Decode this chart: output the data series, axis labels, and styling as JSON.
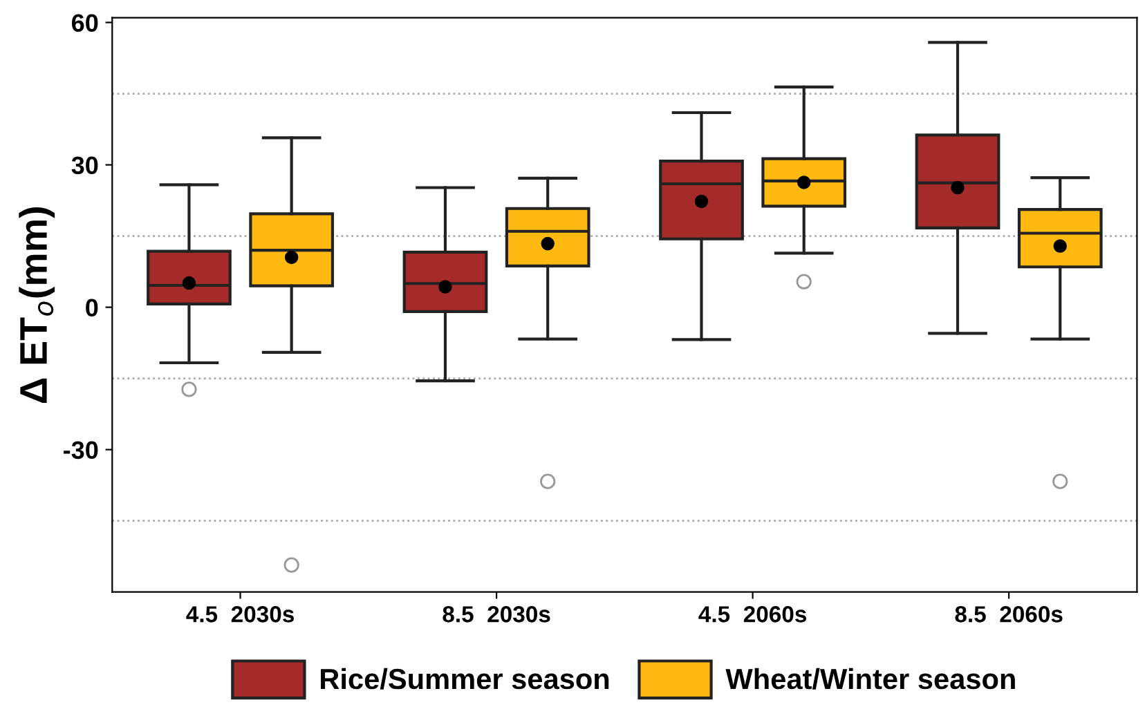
{
  "chart_data": {
    "type": "box",
    "ylabel": "Δ ET$_{o}$(mm)",
    "categories": [
      "4.5  2030s",
      "8.5  2030s",
      "4.5  2060s",
      "8.5  2060s"
    ],
    "ylim": [
      -60,
      61
    ],
    "yticks": [
      60,
      30,
      0,
      -30
    ],
    "legend": "bottom",
    "series": [
      {
        "name": "Rice/Summer season",
        "color": "#a52a2a",
        "boxes": [
          {
            "low": -11.7,
            "q1": 0.7,
            "median": 4.6,
            "q3": 11.8,
            "high": 25.8,
            "mean": 5.1,
            "outliers": [
              -17.3
            ]
          },
          {
            "low": -15.5,
            "q1": -0.9,
            "median": 5.0,
            "q3": 11.6,
            "high": 25.2,
            "mean": 4.3
          },
          {
            "low": -6.8,
            "q1": 14.4,
            "median": 26.0,
            "q3": 30.8,
            "high": 41.0,
            "mean": 22.3
          },
          {
            "low": -5.5,
            "q1": 16.7,
            "median": 26.2,
            "q3": 36.3,
            "high": 55.8,
            "mean": 25.2
          }
        ]
      },
      {
        "name": "Wheat/Winter season",
        "color": "#ffb90f",
        "boxes": [
          {
            "low": -9.5,
            "q1": 4.5,
            "median": 12.0,
            "q3": 19.7,
            "high": 35.7,
            "mean": 10.5,
            "outliers": [
              -54.3
            ]
          },
          {
            "low": -6.7,
            "q1": 8.7,
            "median": 16.0,
            "q3": 20.8,
            "high": 27.2,
            "mean": 13.4,
            "outliers": [
              -36.7
            ]
          },
          {
            "low": 11.4,
            "q1": 21.3,
            "median": 26.6,
            "q3": 31.3,
            "high": 46.4,
            "mean": 26.3,
            "outliers": [
              5.4
            ]
          },
          {
            "low": -6.7,
            "q1": 8.5,
            "median": 15.6,
            "q3": 20.6,
            "high": 27.3,
            "mean": 12.9,
            "outliers": [
              -36.7
            ]
          }
        ]
      }
    ],
    "ref_lines": [
      {
        "axis": "y",
        "value": 45,
        "label": null,
        "color": "#aaaaaa",
        "line_style": "dotted"
      },
      {
        "axis": "y",
        "value": 15,
        "label": null,
        "color": "#aaaaaa",
        "line_style": "dotted"
      },
      {
        "axis": "y",
        "value": -15,
        "label": null,
        "color": "#aaaaaa",
        "line_style": "dotted"
      },
      {
        "axis": "y",
        "value": -45,
        "label": null,
        "color": "#aaaaaa",
        "line_style": "dotted"
      }
    ]
  }
}
